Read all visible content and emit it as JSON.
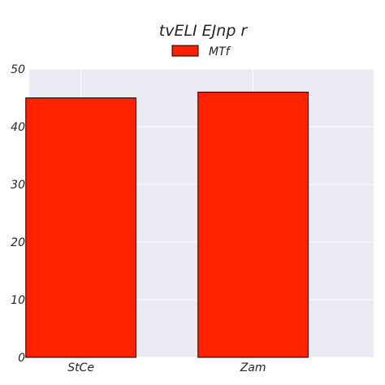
{
  "chart_data": {
    "type": "bar",
    "title": "tvELI EJnp r",
    "xlabel": "",
    "ylabel": "",
    "categories": [
      "StCe",
      "Zam"
    ],
    "series": [
      {
        "name": "MTf",
        "values": [
          45,
          46
        ],
        "color": "#ff2200"
      }
    ],
    "ylim": [
      0,
      50
    ],
    "yticks": [
      0,
      10,
      20,
      30,
      40,
      50
    ],
    "grid": true,
    "legend": "top-center",
    "colors": {
      "plot_bg": "#eaeaf2",
      "grid": "#ffffff",
      "bar_edge": "#000000"
    }
  }
}
